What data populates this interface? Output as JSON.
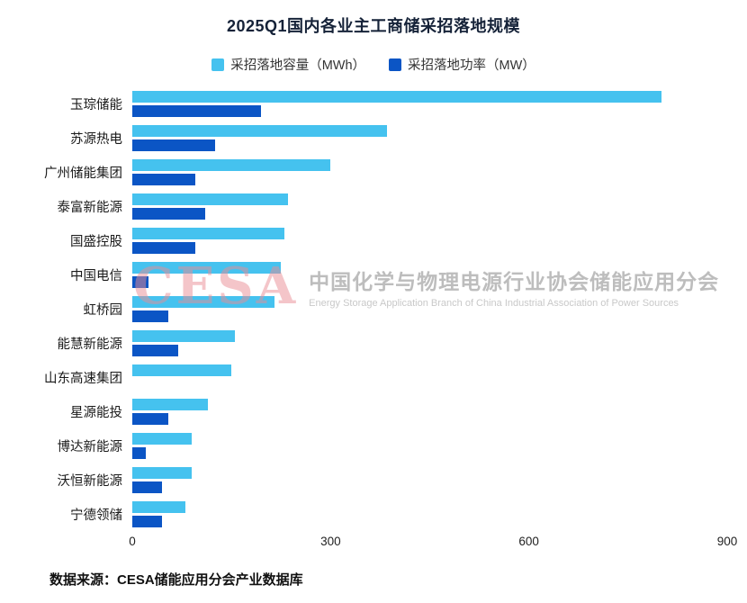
{
  "title": "2025Q1国内各业主工商储采招落地规模",
  "legend": [
    {
      "label": "采招落地容量（MWh）",
      "color": "#45c2ef"
    },
    {
      "label": "采招落地功率（MW）",
      "color": "#0b55c5"
    }
  ],
  "chart_data": {
    "type": "bar",
    "orientation": "horizontal",
    "title": "2025Q1国内各业主工商储采招落地规模",
    "categories": [
      "玉琮储能",
      "苏源热电",
      "广州储能集团",
      "泰富新能源",
      "国盛控股",
      "中国电信",
      "虹桥园",
      "能慧新能源",
      "山东高速集团",
      "星源能投",
      "博达新能源",
      "沃恒新能源",
      "宁德领储"
    ],
    "series": [
      {
        "name": "采招落地容量（MWh）",
        "color": "#45c2ef",
        "values": [
          800,
          385,
          300,
          235,
          230,
          225,
          215,
          155,
          150,
          115,
          90,
          90,
          80
        ]
      },
      {
        "name": "采招落地功率（MW）",
        "color": "#0b55c5",
        "values": [
          195,
          125,
          95,
          110,
          95,
          25,
          55,
          70,
          0,
          55,
          20,
          45,
          45
        ]
      }
    ],
    "xlim": [
      0,
      900
    ],
    "xticks": [
      0,
      300,
      600,
      900
    ],
    "grid": false,
    "legend_position": "top"
  },
  "watermark": {
    "logo": "CESA",
    "line1": "中国化学与物理电源行业协会储能应用分会",
    "line2": "Energy Storage Application Branch of China Industrial Association of Power Sources"
  },
  "source": "数据来源：CESA储能应用分会产业数据库"
}
